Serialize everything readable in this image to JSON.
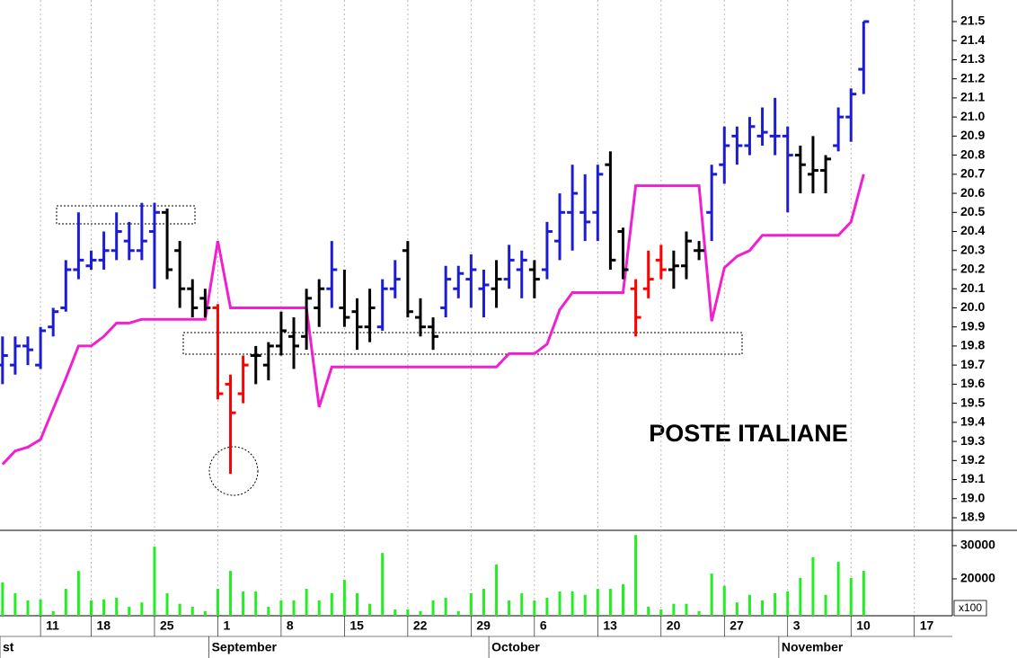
{
  "chart_data": [
    {
      "type": "ohlc",
      "title": "POSTE ITALIANE",
      "x": [
        0,
        1,
        2,
        3,
        4,
        5,
        6,
        7,
        8,
        9,
        10,
        11,
        12,
        13,
        14,
        15,
        16,
        17,
        18,
        19,
        20,
        21,
        22,
        23,
        24,
        25,
        26,
        27,
        28,
        29,
        30,
        31,
        32,
        33,
        34,
        35,
        36,
        37,
        38,
        39,
        40,
        41,
        42,
        43,
        44,
        45,
        46,
        47,
        48,
        49,
        50,
        51,
        52,
        53,
        54,
        55,
        56,
        57,
        58,
        59,
        60,
        61,
        62,
        63,
        64,
        65,
        66,
        67,
        68
      ],
      "open": [
        19.7,
        19.7,
        19.8,
        19.7,
        19.9,
        20.0,
        20.2,
        20.22,
        20.25,
        20.3,
        20.35,
        20.3,
        20.4,
        20.5,
        20.3,
        20.1,
        20.05,
        20.0,
        19.6,
        19.55,
        19.75,
        19.7,
        19.8,
        19.85,
        19.85,
        20.0,
        20.1,
        20.0,
        19.98,
        19.9,
        19.9,
        20.1,
        20.3,
        19.95,
        19.9,
        20.0,
        20.1,
        20.15,
        20.1,
        20.1,
        20.15,
        20.2,
        20.2,
        20.2,
        20.35,
        20.5,
        20.5,
        20.5,
        20.75,
        20.4,
        20.1,
        20.1,
        20.25,
        20.2,
        20.22,
        20.3,
        20.5,
        20.75,
        20.9,
        20.85,
        20.9,
        20.9,
        20.9,
        20.8,
        20.7,
        20.72,
        20.85,
        21.0,
        21.25
      ],
      "high": [
        19.85,
        19.85,
        19.85,
        19.9,
        20.0,
        20.25,
        20.5,
        20.3,
        20.4,
        20.5,
        20.45,
        20.55,
        20.55,
        20.52,
        20.35,
        20.15,
        20.1,
        20.02,
        19.65,
        19.75,
        19.8,
        19.82,
        19.98,
        19.95,
        20.1,
        20.15,
        20.35,
        20.2,
        20.05,
        20.1,
        20.15,
        20.25,
        20.35,
        20.05,
        19.95,
        20.22,
        20.22,
        20.28,
        20.2,
        20.25,
        20.33,
        20.3,
        20.25,
        20.45,
        20.6,
        20.75,
        20.7,
        20.75,
        20.82,
        20.42,
        20.15,
        20.3,
        20.33,
        20.3,
        20.4,
        20.35,
        20.75,
        20.95,
        20.95,
        21.0,
        21.05,
        21.1,
        20.95,
        20.85,
        20.9,
        20.8,
        21.05,
        21.15,
        21.5
      ],
      "low": [
        19.6,
        19.65,
        19.7,
        19.68,
        19.85,
        19.98,
        20.15,
        20.2,
        20.2,
        20.25,
        20.25,
        20.25,
        20.1,
        20.15,
        20.0,
        19.95,
        19.95,
        19.52,
        19.13,
        19.5,
        19.6,
        19.62,
        19.75,
        19.68,
        19.78,
        19.9,
        20.0,
        19.9,
        19.78,
        19.82,
        19.88,
        20.05,
        19.95,
        19.85,
        19.78,
        19.95,
        20.05,
        20.0,
        19.95,
        20.0,
        20.1,
        20.05,
        20.05,
        20.15,
        20.25,
        20.3,
        20.35,
        20.35,
        20.2,
        20.15,
        19.85,
        20.05,
        20.15,
        20.1,
        20.15,
        20.25,
        20.35,
        20.65,
        20.75,
        20.8,
        20.85,
        20.8,
        20.5,
        20.6,
        20.6,
        20.6,
        20.82,
        20.87,
        21.12
      ],
      "close": [
        19.75,
        19.8,
        19.78,
        19.88,
        19.98,
        20.2,
        20.25,
        20.25,
        20.3,
        20.4,
        20.3,
        20.35,
        20.5,
        20.2,
        20.1,
        20.0,
        20.0,
        19.55,
        19.45,
        19.7,
        19.75,
        19.8,
        19.88,
        19.8,
        20.05,
        20.1,
        20.2,
        19.95,
        19.9,
        20.0,
        20.1,
        20.15,
        19.98,
        19.9,
        19.85,
        20.15,
        20.18,
        20.2,
        20.12,
        20.15,
        20.25,
        20.25,
        20.15,
        20.4,
        20.5,
        20.6,
        20.45,
        20.7,
        20.25,
        20.2,
        19.95,
        20.15,
        20.2,
        20.22,
        20.35,
        20.3,
        20.7,
        20.85,
        20.85,
        20.95,
        20.92,
        20.9,
        20.8,
        20.75,
        20.72,
        20.78,
        21.0,
        21.12,
        21.5
      ],
      "colors": [
        "#1c1cd6",
        "#1c1cd6",
        "#1c1cd6",
        "#1c1cd6",
        "#1c1cd6",
        "#1c1cd6",
        "#1c1cd6",
        "#1c1cd6",
        "#1c1cd6",
        "#1c1cd6",
        "#1c1cd6",
        "#1c1cd6",
        "#1c1cd6",
        "#000000",
        "#000000",
        "#000000",
        "#000000",
        "#ff0000",
        "#ff0000",
        "#ff0000",
        "#000000",
        "#000000",
        "#000000",
        "#000000",
        "#000000",
        "#000000",
        "#1c1cd6",
        "#000000",
        "#000000",
        "#000000",
        "#1c1cd6",
        "#1c1cd6",
        "#000000",
        "#000000",
        "#000000",
        "#1c1cd6",
        "#1c1cd6",
        "#1c1cd6",
        "#1c1cd6",
        "#000000",
        "#1c1cd6",
        "#1c1cd6",
        "#000000",
        "#1c1cd6",
        "#1c1cd6",
        "#1c1cd6",
        "#1c1cd6",
        "#1c1cd6",
        "#000000",
        "#000000",
        "#ff0000",
        "#ff0000",
        "#ff0000",
        "#000000",
        "#000000",
        "#000000",
        "#1c1cd6",
        "#1c1cd6",
        "#1c1cd6",
        "#1c1cd6",
        "#1c1cd6",
        "#1c1cd6",
        "#1c1cd6",
        "#000000",
        "#000000",
        "#000000",
        "#1c1cd6",
        "#1c1cd6",
        "#1c1cd6"
      ],
      "overlay": {
        "color": "#f020d0",
        "values": [
          19.18,
          19.25,
          19.27,
          19.31,
          19.47,
          19.63,
          19.8,
          19.8,
          19.85,
          19.92,
          19.92,
          19.94,
          19.94,
          19.94,
          19.94,
          19.94,
          19.94,
          20.35,
          20.0,
          20.0,
          20.0,
          20.0,
          20.0,
          20.0,
          20.0,
          19.48,
          19.69,
          19.69,
          19.69,
          19.69,
          19.69,
          19.69,
          19.69,
          19.69,
          19.69,
          19.69,
          19.69,
          19.69,
          19.69,
          19.69,
          19.76,
          19.76,
          19.76,
          19.81,
          19.99,
          20.08,
          20.08,
          20.08,
          20.08,
          20.08,
          20.64,
          20.64,
          20.64,
          20.64,
          20.64,
          20.64,
          19.93,
          20.21,
          20.27,
          20.3,
          20.38,
          20.38,
          20.38,
          20.38,
          20.38,
          20.38,
          20.38,
          20.45,
          20.7
        ]
      },
      "xlim": [
        -0.2,
        75
      ],
      "ylim": [
        18.834,
        21.613
      ],
      "yticks": [
        18.9,
        {
          "value": 19,
          "label": "19.0"
        },
        19.1,
        19.2,
        19.3,
        19.4,
        19.5,
        19.6,
        19.7,
        19.8,
        19.9,
        {
          "value": 20,
          "label": "20.0"
        },
        20.1,
        20.2,
        20.3,
        20.4,
        20.5,
        20.6,
        20.7,
        20.8,
        20.9,
        {
          "value": 21,
          "label": "21.0"
        },
        21.1,
        21.2,
        21.3,
        21.4,
        21.5
      ]
    },
    {
      "type": "bar",
      "color": "#22ee22",
      "values": [
        18900,
        15700,
        13500,
        13800,
        10300,
        17000,
        22400,
        13500,
        13800,
        14300,
        11600,
        12900,
        29700,
        15700,
        12500,
        11600,
        10300,
        17000,
        22400,
        16200,
        16200,
        11600,
        13500,
        13500,
        17000,
        13500,
        15700,
        19700,
        15700,
        12500,
        27800,
        10800,
        10800,
        10300,
        13500,
        14300,
        10300,
        15700,
        17000,
        24300,
        13500,
        15700,
        13500,
        14300,
        16200,
        16200,
        15200,
        17000,
        17000,
        18400,
        33200,
        11600,
        10800,
        12500,
        12500,
        10300,
        21600,
        17900,
        12900,
        15200,
        13500,
        15700,
        16200,
        20300,
        26500,
        15200,
        25100,
        20300,
        22400
      ],
      "ylim": [
        8900,
        34600
      ],
      "yticks": [
        20000,
        30000
      ],
      "unit": "x100",
      "xlim": [
        -0.2,
        75
      ],
      "xticks": [
        {
          "value": 3,
          "label": "11"
        },
        {
          "value": 7,
          "label": "18"
        },
        {
          "value": 12,
          "label": "25"
        },
        {
          "value": 17,
          "label": "1"
        },
        {
          "value": 22,
          "label": "8"
        },
        {
          "value": 27,
          "label": "15"
        },
        {
          "value": 32,
          "label": "22"
        },
        {
          "value": 37,
          "label": "29"
        },
        {
          "value": 42,
          "label": "6"
        },
        {
          "value": 47,
          "label": "13"
        },
        {
          "value": 52,
          "label": "20"
        },
        {
          "value": 57,
          "label": "27"
        },
        {
          "value": 62,
          "label": "3"
        },
        {
          "value": 67,
          "label": "10"
        },
        {
          "value": 72,
          "label": "17"
        }
      ],
      "month_ticks": [
        {
          "value": -0.2,
          "label": "st"
        },
        {
          "value": 16.3,
          "label": "September"
        },
        {
          "value": 38.4,
          "label": "October"
        },
        {
          "value": 61.3,
          "label": "November"
        }
      ]
    }
  ]
}
